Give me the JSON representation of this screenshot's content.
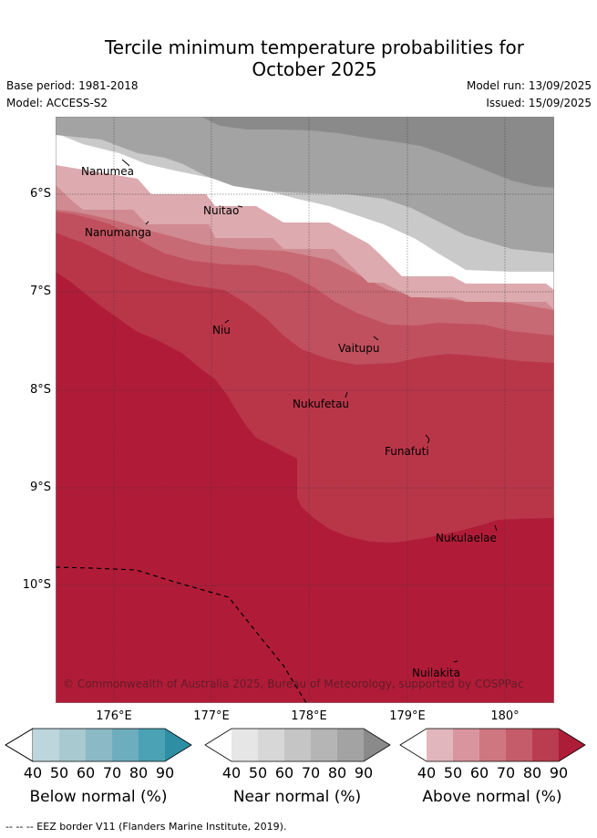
{
  "title_line1": "Tercile minimum temperature probabilities for",
  "title_line2": "October 2025",
  "base_period": "Base period: 1981-2018",
  "model": "Model: ACCESS-S2",
  "model_run": "Model run: 13/09/2025",
  "issued": "Issued: 15/09/2025",
  "lat_labels": [
    "6°S",
    "7°S",
    "8°S",
    "9°S",
    "10°S"
  ],
  "lon_labels": [
    "176°E",
    "177°E",
    "178°E",
    "179°E",
    "180°"
  ],
  "places": [
    "Nanumea",
    "Nuitao",
    "Nanumanga",
    "Niu",
    "Vaitupu",
    "Nukufetau",
    "Funafuti",
    "Nukulaelae",
    "Nuilakita"
  ],
  "copyright": "© Commonwealth of Australia 2025, Bureau of Meteorology, supported by COSPPac",
  "colorbars": [
    {
      "title": "Below normal (%)",
      "ticks": [
        "40",
        "50",
        "60",
        "70",
        "80",
        "90"
      ],
      "colors": [
        "#bdd5dc",
        "#a7c9cf",
        "#8bbac6",
        "#6eadbe",
        "#4aa2b4",
        "#2e8ea4"
      ]
    },
    {
      "title": "Near normal (%)",
      "ticks": [
        "40",
        "50",
        "60",
        "70",
        "80",
        "90"
      ],
      "colors": [
        "#e6e6e6",
        "#d7d7d7",
        "#c5c5c5",
        "#b5b5b5",
        "#a3a3a3",
        "#8a8a8a"
      ]
    },
    {
      "title": "Above normal (%)",
      "ticks": [
        "40",
        "50",
        "60",
        "70",
        "80",
        "90"
      ],
      "colors": [
        "#e2b6bd",
        "#d9959d",
        "#cf7780",
        "#c45d69",
        "#b93c4f",
        "#ae1d38"
      ]
    }
  ],
  "footer": "--  --  -- EEZ border V11 (Flanders Marine Institute, 2019)."
}
